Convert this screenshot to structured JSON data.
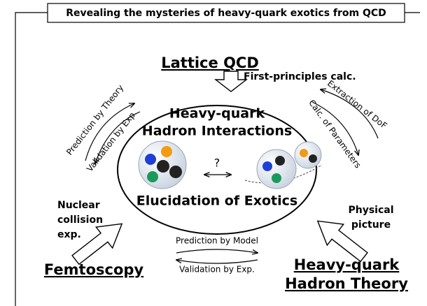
{
  "header": {
    "title": "Revealing the mysteries of heavy-quark exotics from QCD"
  },
  "center": {
    "lines": [
      "Heavy-quark",
      "Hadron Interactions"
    ],
    "question": "?",
    "subtitle": "Elucidation of Exotics"
  },
  "top": {
    "name": "Lattice QCD",
    "method": "First-principles calc.",
    "left_arrows": [
      "Prediction by Theory",
      "Validation by Exp."
    ],
    "right_arrows": [
      "Extraction of DoF",
      "Calc. of Parameters"
    ]
  },
  "left": {
    "name": "Femtoscopy",
    "method_lines": [
      "Nuclear",
      "collision",
      "exp."
    ]
  },
  "right": {
    "name_lines": [
      "Heavy-quark",
      "Hadron Theory"
    ],
    "method_lines": [
      "Physical",
      "picture"
    ]
  },
  "bottom_arrows": [
    "Prediction by Model",
    "Validation by Exp."
  ]
}
